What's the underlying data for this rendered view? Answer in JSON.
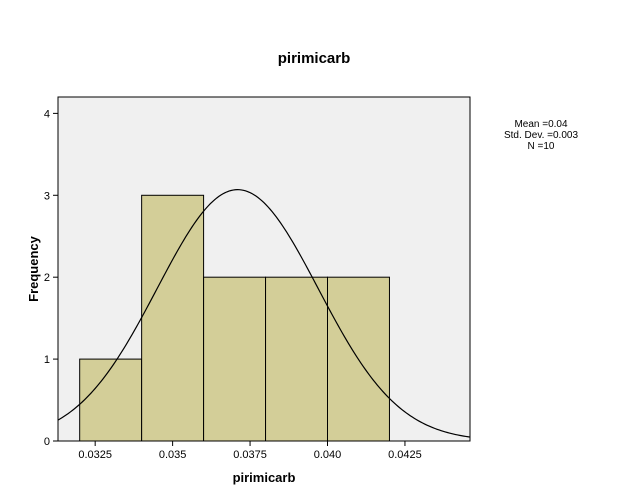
{
  "chart_data": {
    "type": "bar",
    "subtype": "histogram",
    "title": "pirimicarb",
    "xlabel": "pirimicarb",
    "ylabel": "Frequency",
    "bins": [
      {
        "start": 0.032,
        "end": 0.034,
        "count": 1
      },
      {
        "start": 0.034,
        "end": 0.036,
        "count": 3
      },
      {
        "start": 0.036,
        "end": 0.038,
        "count": 2
      },
      {
        "start": 0.038,
        "end": 0.04,
        "count": 2
      },
      {
        "start": 0.04,
        "end": 0.042,
        "count": 2
      }
    ],
    "xlim": [
      0.0313,
      0.0446
    ],
    "ylim": [
      0,
      4.2
    ],
    "x_ticks": [
      0.0325,
      0.035,
      0.0375,
      0.04,
      0.0425
    ],
    "x_tick_labels": [
      "0.0325",
      "0.035",
      "0.0375",
      "0.040",
      "0.0425"
    ],
    "y_ticks": [
      0,
      1,
      2,
      3,
      4
    ],
    "y_tick_labels": [
      "0",
      "1",
      "2",
      "3",
      "4"
    ],
    "normal_curve": {
      "mean": 0.0371,
      "sd": 0.0026,
      "n": 10,
      "bin_width": 0.002
    },
    "stats_lines": [
      "Mean =0.04",
      "Std. Dev. =0.003",
      "N =10"
    ],
    "grid": false,
    "colors": {
      "bar_fill": "#d3ce98",
      "plot_background": "#f0f0f0",
      "outline": "#000000"
    }
  }
}
